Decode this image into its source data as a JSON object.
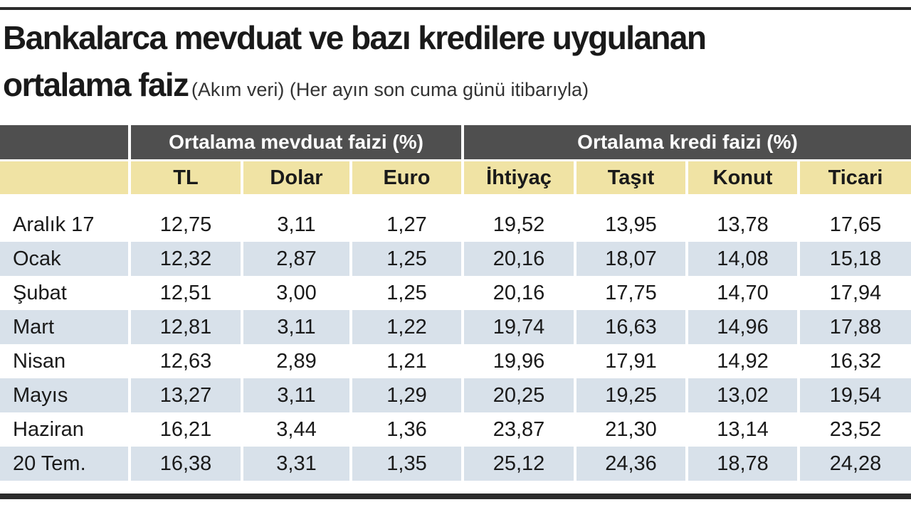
{
  "header": {
    "title_line1": "Bankalarca mevduat ve bazı kredilere uygulanan",
    "title_line2": "ortalama faiz",
    "subtitle": "(Akım veri) (Her ayın son cuma günü itibarıyla)"
  },
  "table": {
    "groups": [
      {
        "label": "Ortalama mevduat faizi (%)",
        "span": 3
      },
      {
        "label": "Ortalama kredi faizi (%)",
        "span": 4
      }
    ],
    "columns": [
      "TL",
      "Dolar",
      "Euro",
      "İhtiyaç",
      "Taşıt",
      "Konut",
      "Ticari"
    ],
    "rows": [
      [
        "Aralık 17",
        "12,75",
        "3,11",
        "1,27",
        "19,52",
        "13,95",
        "13,78",
        "17,65"
      ],
      [
        "Ocak",
        "12,32",
        "2,87",
        "1,25",
        "20,16",
        "18,07",
        "14,08",
        "15,18"
      ],
      [
        "Şubat",
        "12,51",
        "3,00",
        "1,25",
        "20,16",
        "17,75",
        "14,70",
        "17,94"
      ],
      [
        "Mart",
        "12,81",
        "3,11",
        "1,22",
        "19,74",
        "16,63",
        "14,96",
        "17,88"
      ],
      [
        "Nisan",
        "12,63",
        "2,89",
        "1,21",
        "19,96",
        "17,91",
        "14,92",
        "16,32"
      ],
      [
        "Mayıs",
        "13,27",
        "3,11",
        "1,29",
        "20,25",
        "19,25",
        "13,02",
        "19,54"
      ],
      [
        "Haziran",
        "16,21",
        "3,44",
        "1,36",
        "23,87",
        "21,30",
        "13,14",
        "23,52"
      ],
      [
        "20 Tem.",
        "16,38",
        "3,31",
        "1,35",
        "25,12",
        "24,36",
        "18,78",
        "24,28"
      ]
    ]
  }
}
